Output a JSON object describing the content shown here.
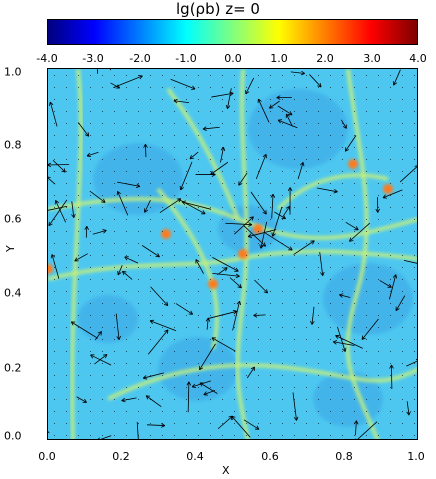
{
  "figure": {
    "title": "lg(ρb) z= 0",
    "colorbar": {
      "ticks": [
        "-4.0",
        "-3.0",
        "-2.0",
        "-1.0",
        "0.0",
        "1.0",
        "2.0",
        "3.0",
        "4.0"
      ],
      "colormap": [
        "#00007f",
        "#0000ff",
        "#007fff",
        "#00ffff",
        "#7fff7f",
        "#ffff00",
        "#ff7f00",
        "#ff0000",
        "#7f0000"
      ]
    },
    "axes": {
      "xlabel": "X",
      "ylabel": "Y",
      "xticks": [
        "0.0",
        "0.2",
        "0.4",
        "0.6",
        "0.8",
        "1.0"
      ],
      "yticks": [
        "0.0",
        "0.2",
        "0.4",
        "0.6",
        "0.8",
        "1.0"
      ]
    },
    "field": {
      "background": "#4dc7f0",
      "filament_color": "#c8f07a",
      "node_color": "#ff7a1a",
      "void_color": "#3aa6e6",
      "vector_color": "#000000"
    }
  }
}
